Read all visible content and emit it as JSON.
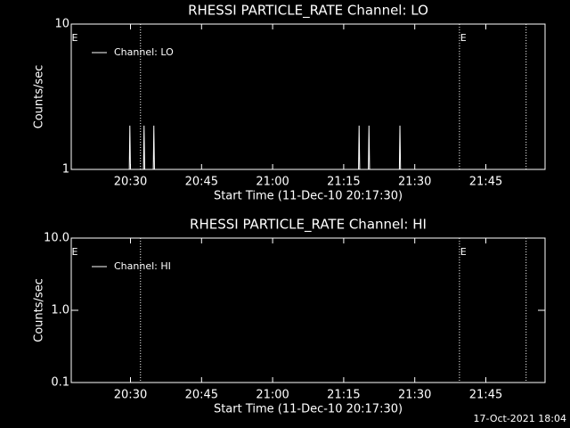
{
  "chart_data": [
    {
      "type": "line",
      "title": "RHESSI PARTICLE_RATE Channel: LO",
      "xlabel": "Start Time (11-Dec-10 20:17:30)",
      "ylabel": "Counts/sec",
      "xlim": [
        "20:17:30",
        "21:57:30"
      ],
      "xticks": [
        "20:30",
        "20:45",
        "21:00",
        "21:15",
        "21:30",
        "21:45"
      ],
      "ylim": [
        1,
        10
      ],
      "yticks": [
        1,
        10
      ],
      "log_y": true,
      "series": [
        {
          "name": "Channel: LO",
          "color": "#ffffff",
          "x": [
            "20:29:45",
            "20:29:52",
            "20:30:00",
            "20:30:01",
            "20:32:45",
            "20:32:52",
            "20:33:00",
            "20:33:01",
            "20:34:49",
            "20:34:56",
            "20:35:04",
            "20:35:05",
            "21:18:08",
            "21:18:15",
            "21:18:23",
            "21:18:24",
            "21:20:13",
            "21:20:20",
            "21:20:28",
            "21:20:29",
            "21:26:45",
            "21:26:52",
            "21:27:00"
          ],
          "values": [
            1,
            2,
            1,
            null,
            1,
            2,
            1,
            null,
            1,
            2,
            1,
            null,
            1,
            2,
            1,
            null,
            1,
            2,
            1,
            null,
            1,
            2,
            1
          ]
        }
      ],
      "vlines": [
        "20:32:07",
        "21:39:26",
        "21:53:30"
      ],
      "markers": [
        {
          "x": "20:18:15",
          "label": "E"
        },
        {
          "x": "21:40:15",
          "label": "E"
        }
      ]
    },
    {
      "type": "line",
      "title": "RHESSI PARTICLE_RATE Channel: HI",
      "xlabel": "Start Time (11-Dec-10 20:17:30)",
      "ylabel": "Counts/sec",
      "xlim": [
        "20:17:30",
        "21:57:30"
      ],
      "xticks": [
        "20:30",
        "20:45",
        "21:00",
        "21:15",
        "21:30",
        "21:45"
      ],
      "ylim": [
        0.1,
        10
      ],
      "yticks": [
        {
          "value": 0.1,
          "label": "0.1"
        },
        {
          "value": 1,
          "label": "1.0"
        },
        {
          "value": 10,
          "label": "10.0"
        }
      ],
      "log_y": true,
      "series": [
        {
          "name": "Channel: HI",
          "color": "#ffffff",
          "x": [],
          "values": []
        }
      ],
      "vlines": [
        "20:32:07",
        "21:39:26",
        "21:53:30"
      ],
      "markers": [
        {
          "x": "20:18:15",
          "label": "E"
        },
        {
          "x": "21:40:15",
          "label": "E"
        }
      ]
    }
  ],
  "footer": "17-Oct-2021 18:04"
}
